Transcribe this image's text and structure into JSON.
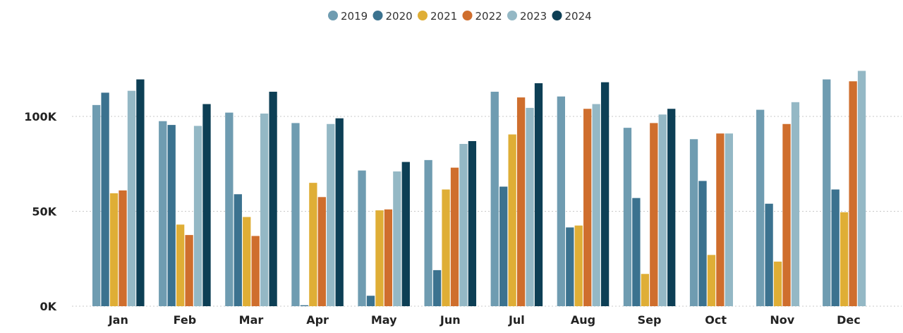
{
  "chart_data": {
    "type": "bar",
    "title": "",
    "xlabel": "",
    "ylabel": "",
    "categories": [
      "Jan",
      "Feb",
      "Mar",
      "Apr",
      "May",
      "Jun",
      "Jul",
      "Aug",
      "Sep",
      "Oct",
      "Nov",
      "Dec"
    ],
    "ylim": [
      0,
      130000
    ],
    "y_ticks": [
      0,
      50000,
      100000
    ],
    "y_tick_labels": [
      "0K",
      "50K",
      "100K"
    ],
    "grid": "horizontal dotted",
    "legend_position": "top-center",
    "series": [
      {
        "name": "2019",
        "color": "#6f9cb1",
        "values": [
          106000,
          97500,
          102000,
          96500,
          71500,
          77000,
          113000,
          110500,
          94000,
          88000,
          103500,
          119500
        ]
      },
      {
        "name": "2020",
        "color": "#3b728f",
        "values": [
          112500,
          95500,
          59000,
          500,
          5500,
          19000,
          63000,
          41500,
          57000,
          66000,
          54000,
          61500
        ]
      },
      {
        "name": "2021",
        "color": "#dfae36",
        "values": [
          59500,
          43000,
          47000,
          65000,
          50500,
          61500,
          90500,
          42500,
          17000,
          27000,
          23500,
          49500
        ]
      },
      {
        "name": "2022",
        "color": "#cf6e2d",
        "values": [
          61000,
          37500,
          37000,
          57500,
          51000,
          73000,
          110000,
          104000,
          96500,
          91000,
          96000,
          118500
        ]
      },
      {
        "name": "2023",
        "color": "#94b8c5",
        "values": [
          113500,
          95000,
          101500,
          96000,
          71000,
          85500,
          104500,
          106500,
          101000,
          91000,
          107500,
          124000
        ]
      },
      {
        "name": "2024",
        "color": "#0d3f55",
        "values": [
          119500,
          106500,
          113000,
          99000,
          76000,
          87000,
          117500,
          118000,
          104000,
          null,
          null,
          null
        ]
      }
    ]
  }
}
